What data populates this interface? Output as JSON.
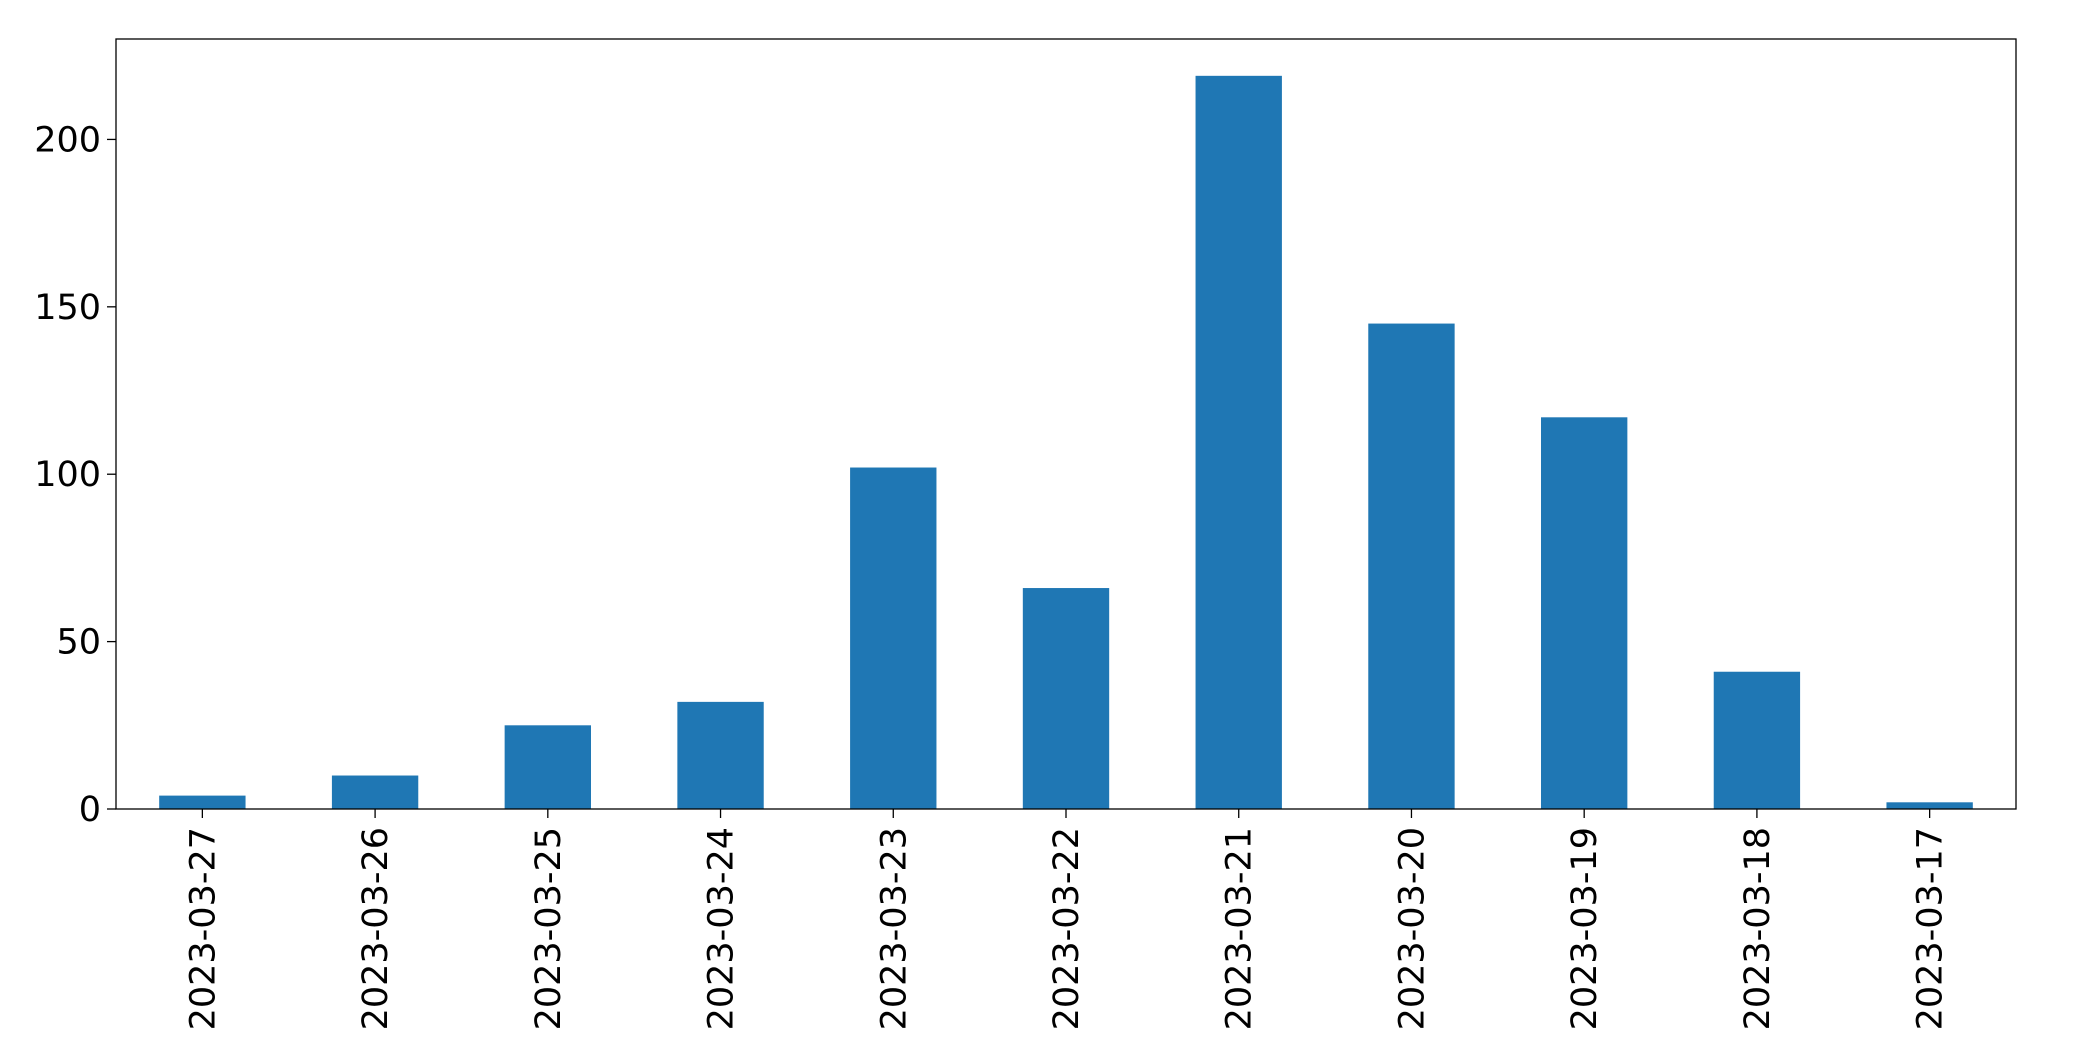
{
  "chart_data": {
    "type": "bar",
    "categories": [
      "2023-03-27",
      "2023-03-26",
      "2023-03-25",
      "2023-03-24",
      "2023-03-23",
      "2023-03-22",
      "2023-03-21",
      "2023-03-20",
      "2023-03-19",
      "2023-03-18",
      "2023-03-17"
    ],
    "values": [
      4,
      10,
      25,
      32,
      102,
      66,
      219,
      145,
      117,
      41,
      2
    ],
    "color": "#1f77b4",
    "ylim": [
      0,
      230
    ],
    "yticks": [
      0,
      50,
      100,
      150,
      200
    ],
    "grid": false
  }
}
